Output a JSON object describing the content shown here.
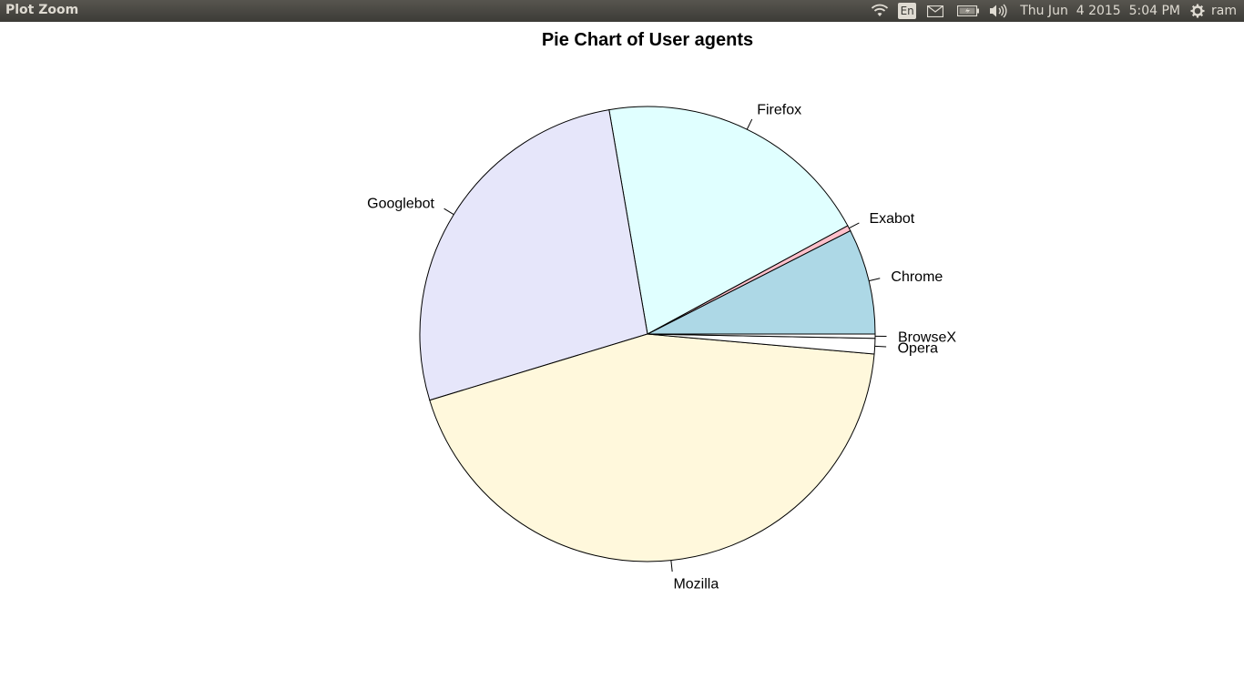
{
  "window": {
    "title": "Plot Zoom"
  },
  "panel": {
    "language": "En",
    "clock": "Thu Jun  4 2015  5:04 PM",
    "user": "ram",
    "icons": [
      "wifi-icon",
      "keyboard-language-indicator",
      "mail-icon",
      "battery-icon",
      "volume-icon",
      "gear-icon"
    ]
  },
  "chart_data": {
    "type": "pie",
    "title": "Pie Chart of User agents",
    "start_angle_deg": 0,
    "direction": "counterclockwise",
    "border_color": "#000000",
    "slices": [
      {
        "label": "Chrome",
        "value": 7.5,
        "color": "#ADD8E6"
      },
      {
        "label": "Exabot",
        "value": 0.4,
        "color": "#FFC0CB"
      },
      {
        "label": "Firefox",
        "value": 19.8,
        "color": "#E0FFFF"
      },
      {
        "label": "Googlebot",
        "value": 27.0,
        "color": "#E6E6FA"
      },
      {
        "label": "Mozilla",
        "value": 43.9,
        "color": "#FFF8DC"
      },
      {
        "label": "Opera",
        "value": 1.1,
        "color": "#FFFFFF"
      },
      {
        "label": "BrowseX",
        "value": 0.3,
        "color": "#FFFFFF"
      }
    ]
  }
}
